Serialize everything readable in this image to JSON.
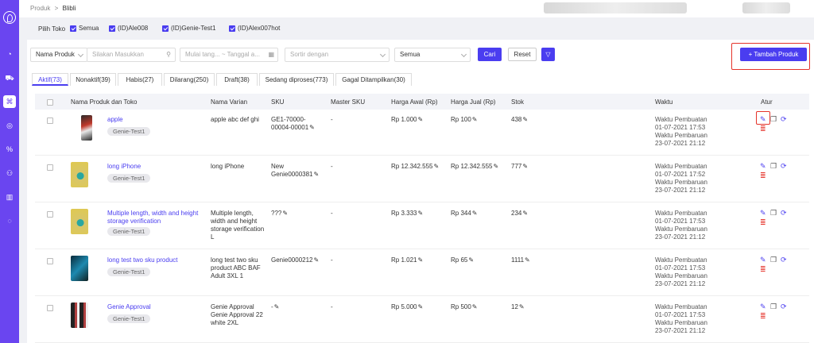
{
  "breadcrumb": {
    "root": "Produk",
    "sep": ">",
    "current": "Blibli"
  },
  "stores": {
    "label": "Pilih Toko",
    "items": [
      "Semua",
      "(ID)Ale008",
      "(ID)Genie-Test1",
      "(ID)Alex007hot"
    ]
  },
  "filters": {
    "name_select": "Nama Produk",
    "search_placeholder": "Silakan Masukkan",
    "date_start": "Mulai tang...",
    "date_sep": "~",
    "date_end": "Tanggal a...",
    "sort_placeholder": "Sortir dengan",
    "status_select": "Semua",
    "search_btn": "Cari",
    "reset_btn": "Reset",
    "add_btn": "+ Tambah Produk"
  },
  "tabs": [
    "Aktif(73)",
    "Nonaktif(39)",
    "Habis(27)",
    "Dilarang(250)",
    "Draft(38)",
    "Sedang diproses(773)",
    "Gagal Ditampilkan(30)"
  ],
  "columns": [
    "Nama Produk dan Toko",
    "Nama Varian",
    "SKU",
    "Master SKU",
    "Harga Awal (Rp)",
    "Harga Jual (Rp)",
    "Stok",
    "Waktu",
    "Atur"
  ],
  "time_labels": {
    "created": "Waktu Pembuatan",
    "updated": "Waktu Pembaruan"
  },
  "rows": [
    {
      "name": "apple",
      "store": "Genie-Test1",
      "variant": "apple abc def ghi",
      "sku": "GE1-70000-00004-00001",
      "master": "-",
      "price_orig": "Rp 1.000",
      "price_sale": "Rp 100",
      "stock": "438",
      "created": "01-07-2021 17:53",
      "updated": "23-07-2021 21:12"
    },
    {
      "name": "long iPhone",
      "store": "Genie-Test1",
      "variant": "long iPhone",
      "sku": "New Genie0000381",
      "master": "-",
      "price_orig": "Rp 12.342.555",
      "price_sale": "Rp 12.342.555",
      "stock": "777",
      "created": "01-07-2021 17:52",
      "updated": "23-07-2021 21:12"
    },
    {
      "name": "Multiple length, width and height storage verification",
      "store": "Genie-Test1",
      "variant": "Multiple length, width and height storage verification L",
      "sku": "???",
      "master": "-",
      "price_orig": "Rp 3.333",
      "price_sale": "Rp 344",
      "stock": "234",
      "created": "01-07-2021 17:53",
      "updated": "23-07-2021 21:12"
    },
    {
      "name": "long test two sku product",
      "store": "Genie-Test1",
      "variant": "long test two sku product ABC BAF Adult 3XL 1",
      "sku": "Genie0000212",
      "master": "-",
      "price_orig": "Rp 1.021",
      "price_sale": "Rp 65",
      "stock": "1111",
      "created": "01-07-2021 17:53",
      "updated": "23-07-2021 21:12"
    },
    {
      "name": "Genie Approval",
      "store": "Genie-Test1",
      "variant": "Genie Approval Genie Approval 22 white 2XL",
      "sku": "-",
      "master": "-",
      "price_orig": "Rp 5.000",
      "price_sale": "Rp 500",
      "stock": "12",
      "created": "01-07-2021 17:53",
      "updated": "23-07-2021 21:12"
    }
  ]
}
